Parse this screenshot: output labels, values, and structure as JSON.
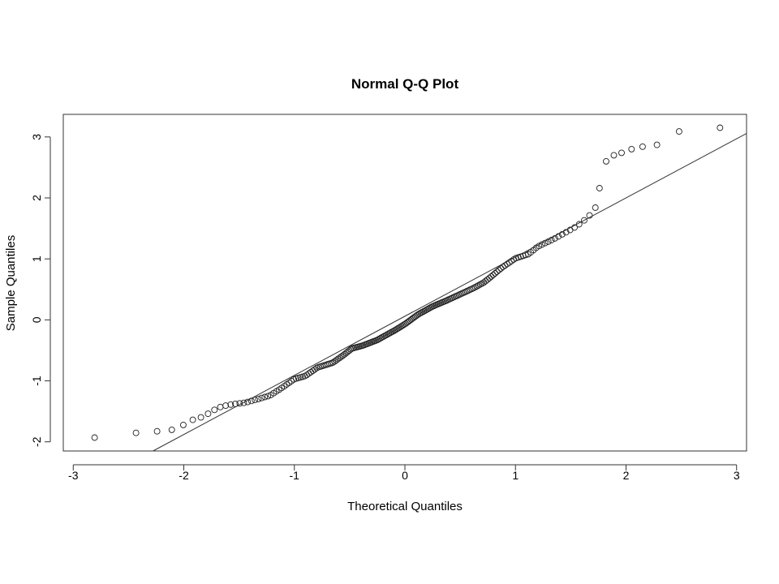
{
  "chart_data": {
    "type": "scatter",
    "title": "Normal Q-Q Plot",
    "xlabel": "Theoretical Quantiles",
    "ylabel": "Sample Quantiles",
    "xlim": [
      -3.09,
      3.09
    ],
    "ylim": [
      -2.15,
      3.37
    ],
    "x_ticks": [
      -3,
      -2,
      -1,
      0,
      1,
      2,
      3
    ],
    "x_tick_labels": [
      "-3",
      "-2",
      "-1",
      "0",
      "1",
      "2",
      "3"
    ],
    "y_ticks": [
      -2,
      -1,
      0,
      1,
      2,
      3
    ],
    "y_tick_labels": [
      "-2",
      "-1",
      "0",
      "1",
      "2",
      "3"
    ],
    "grid": false,
    "legend": "none",
    "marker": "open-circle",
    "reference_line": {
      "intercept": 0.06,
      "slope": 0.97
    },
    "quantile_anchors": {
      "z": [
        -2.85,
        -2.48,
        -2.28,
        -2.13,
        -2.0,
        -1.9,
        -1.82,
        -1.75,
        -1.66,
        -1.55,
        -1.45,
        -1.33,
        -1.22,
        -1.1,
        -1.0,
        -0.9,
        -0.79,
        -0.65,
        -0.55,
        -0.48,
        -0.38,
        -0.25,
        -0.1,
        0.0,
        0.12,
        0.25,
        0.38,
        0.5,
        0.62,
        0.72,
        0.8,
        0.88,
        1.0,
        1.12,
        1.2,
        1.35,
        1.45,
        1.55,
        1.62,
        1.68,
        1.72
      ],
      "y": [
        -1.94,
        -1.86,
        -1.83,
        -1.82,
        -1.72,
        -1.62,
        -1.59,
        -1.5,
        -1.42,
        -1.38,
        -1.36,
        -1.3,
        -1.24,
        -1.1,
        -0.97,
        -0.92,
        -0.78,
        -0.7,
        -0.57,
        -0.47,
        -0.42,
        -0.33,
        -0.18,
        -0.07,
        0.09,
        0.22,
        0.32,
        0.42,
        0.52,
        0.62,
        0.74,
        0.86,
        1.01,
        1.08,
        1.2,
        1.33,
        1.43,
        1.53,
        1.63,
        1.73,
        1.84
      ]
    },
    "upper_tail": {
      "x": [
        1.76,
        1.82,
        1.89,
        1.96,
        2.05,
        2.15,
        2.28,
        2.48,
        2.85
      ],
      "y": [
        2.16,
        2.6,
        2.7,
        2.74,
        2.8,
        2.84,
        2.87,
        3.09,
        3.15
      ]
    }
  }
}
